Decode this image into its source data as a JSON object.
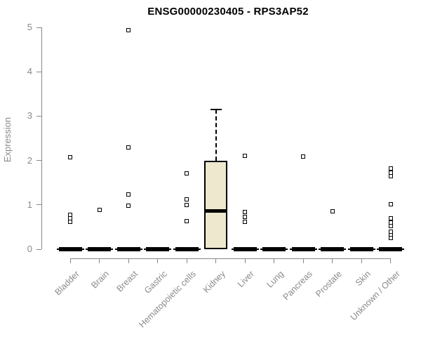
{
  "chart_data": {
    "type": "box",
    "title": "ENSG00000230405 - RPS3AP52",
    "ylabel": "Expression",
    "xlabel": "",
    "ylim": [
      0,
      5
    ],
    "yticks": [
      0,
      1,
      2,
      3,
      4,
      5
    ],
    "grid": false,
    "legend": false,
    "categories": [
      "Bladder",
      "Brain",
      "Breast",
      "Gastric",
      "Hematopoietic cells",
      "Kidney",
      "Liver",
      "Lung",
      "Pancreas",
      "Prostate",
      "Skin",
      "Unknown / Other"
    ],
    "boxes": [
      {
        "category": "Bladder",
        "q1": 0,
        "median": 0,
        "q3": 0,
        "whisker_low": 0,
        "whisker_high": 0,
        "outliers": [
          2.07,
          0.78,
          0.7,
          0.62
        ]
      },
      {
        "category": "Brain",
        "q1": 0,
        "median": 0,
        "q3": 0,
        "whisker_low": 0,
        "whisker_high": 0,
        "outliers": [
          0.89
        ]
      },
      {
        "category": "Breast",
        "q1": 0,
        "median": 0,
        "q3": 0,
        "whisker_low": 0,
        "whisker_high": 0,
        "outliers": [
          4.93,
          2.29,
          1.24,
          0.98
        ]
      },
      {
        "category": "Gastric",
        "q1": 0,
        "median": 0,
        "q3": 0,
        "whisker_low": 0,
        "whisker_high": 0,
        "outliers": []
      },
      {
        "category": "Hematopoietic cells",
        "q1": 0,
        "median": 0,
        "q3": 0,
        "whisker_low": 0,
        "whisker_high": 0,
        "outliers": [
          1.71,
          1.13,
          1.0,
          0.63
        ]
      },
      {
        "category": "Kidney",
        "q1": 0,
        "median": 0.86,
        "q3": 2.0,
        "whisker_low": 0,
        "whisker_high": 3.15,
        "outliers": []
      },
      {
        "category": "Liver",
        "q1": 0,
        "median": 0,
        "q3": 0,
        "whisker_low": 0,
        "whisker_high": 0,
        "outliers": [
          2.1,
          0.84,
          0.73,
          0.61
        ]
      },
      {
        "category": "Lung",
        "q1": 0,
        "median": 0,
        "q3": 0,
        "whisker_low": 0,
        "whisker_high": 0,
        "outliers": []
      },
      {
        "category": "Pancreas",
        "q1": 0,
        "median": 0,
        "q3": 0,
        "whisker_low": 0,
        "whisker_high": 0,
        "outliers": [
          2.09
        ]
      },
      {
        "category": "Prostate",
        "q1": 0,
        "median": 0,
        "q3": 0,
        "whisker_low": 0,
        "whisker_high": 0,
        "outliers": [
          0.85
        ]
      },
      {
        "category": "Skin",
        "q1": 0,
        "median": 0,
        "q3": 0,
        "whisker_low": 0,
        "whisker_high": 0,
        "outliers": []
      },
      {
        "category": "Unknown / Other",
        "q1": 0,
        "median": 0,
        "q3": 0,
        "whisker_low": 0,
        "whisker_high": 0,
        "outliers": [
          1.82,
          1.73,
          1.64,
          1.02,
          0.7,
          0.6,
          0.52,
          0.4,
          0.32,
          0.25
        ]
      }
    ],
    "colors": {
      "box_fill": "#EDE8CE",
      "box_border": "#000000",
      "median": "#000000",
      "outlier_fill": "#FFFFFF",
      "axis": "#888888",
      "tick_label": "#8A8A8A",
      "title": "#000000",
      "background": "#FFFFFF"
    }
  }
}
